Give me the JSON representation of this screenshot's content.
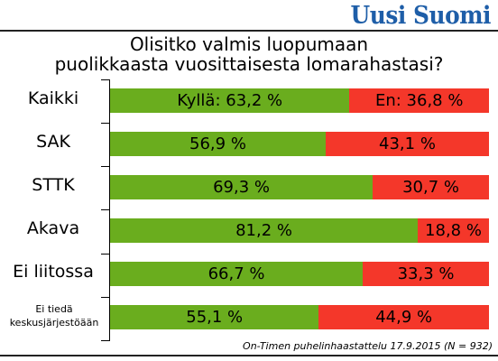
{
  "brand": "Uusi Suomi",
  "colors": {
    "yes": "#6aad1e",
    "no": "#f4372a",
    "brand": "#1e5ea8"
  },
  "chart_data": {
    "type": "bar",
    "orientation": "horizontal",
    "stacked": true,
    "title_lines": [
      "Olisitko valmis luopumaan",
      "puolikkaasta vuosittaisesta lomarahastasi?"
    ],
    "categories": [
      "Kaikki",
      "SAK",
      "STTK",
      "Akava",
      "Ei liitossa",
      "Ei tiedä keskusjärjestöään"
    ],
    "series": [
      {
        "name": "Kyllä",
        "values": [
          63.2,
          56.9,
          69.3,
          81.2,
          66.7,
          55.1
        ]
      },
      {
        "name": "En",
        "values": [
          36.8,
          43.1,
          30.7,
          18.8,
          33.3,
          44.9
        ]
      }
    ],
    "data_labels": {
      "yes": [
        "Kyllä: 63,2 %",
        "56,9 %",
        "69,3 %",
        "81,2 %",
        "66,7 %",
        "55,1 %"
      ],
      "no": [
        "En: 36,8 %",
        "43,1 %",
        "30,7 %",
        "18,8 %",
        "33,3 %",
        "44,9 %"
      ]
    },
    "xlim": [
      0,
      100
    ],
    "grid": false,
    "legend": "none"
  },
  "source": "On-Timen puhelinhaastattelu 17.9.2015 (N = 932)"
}
